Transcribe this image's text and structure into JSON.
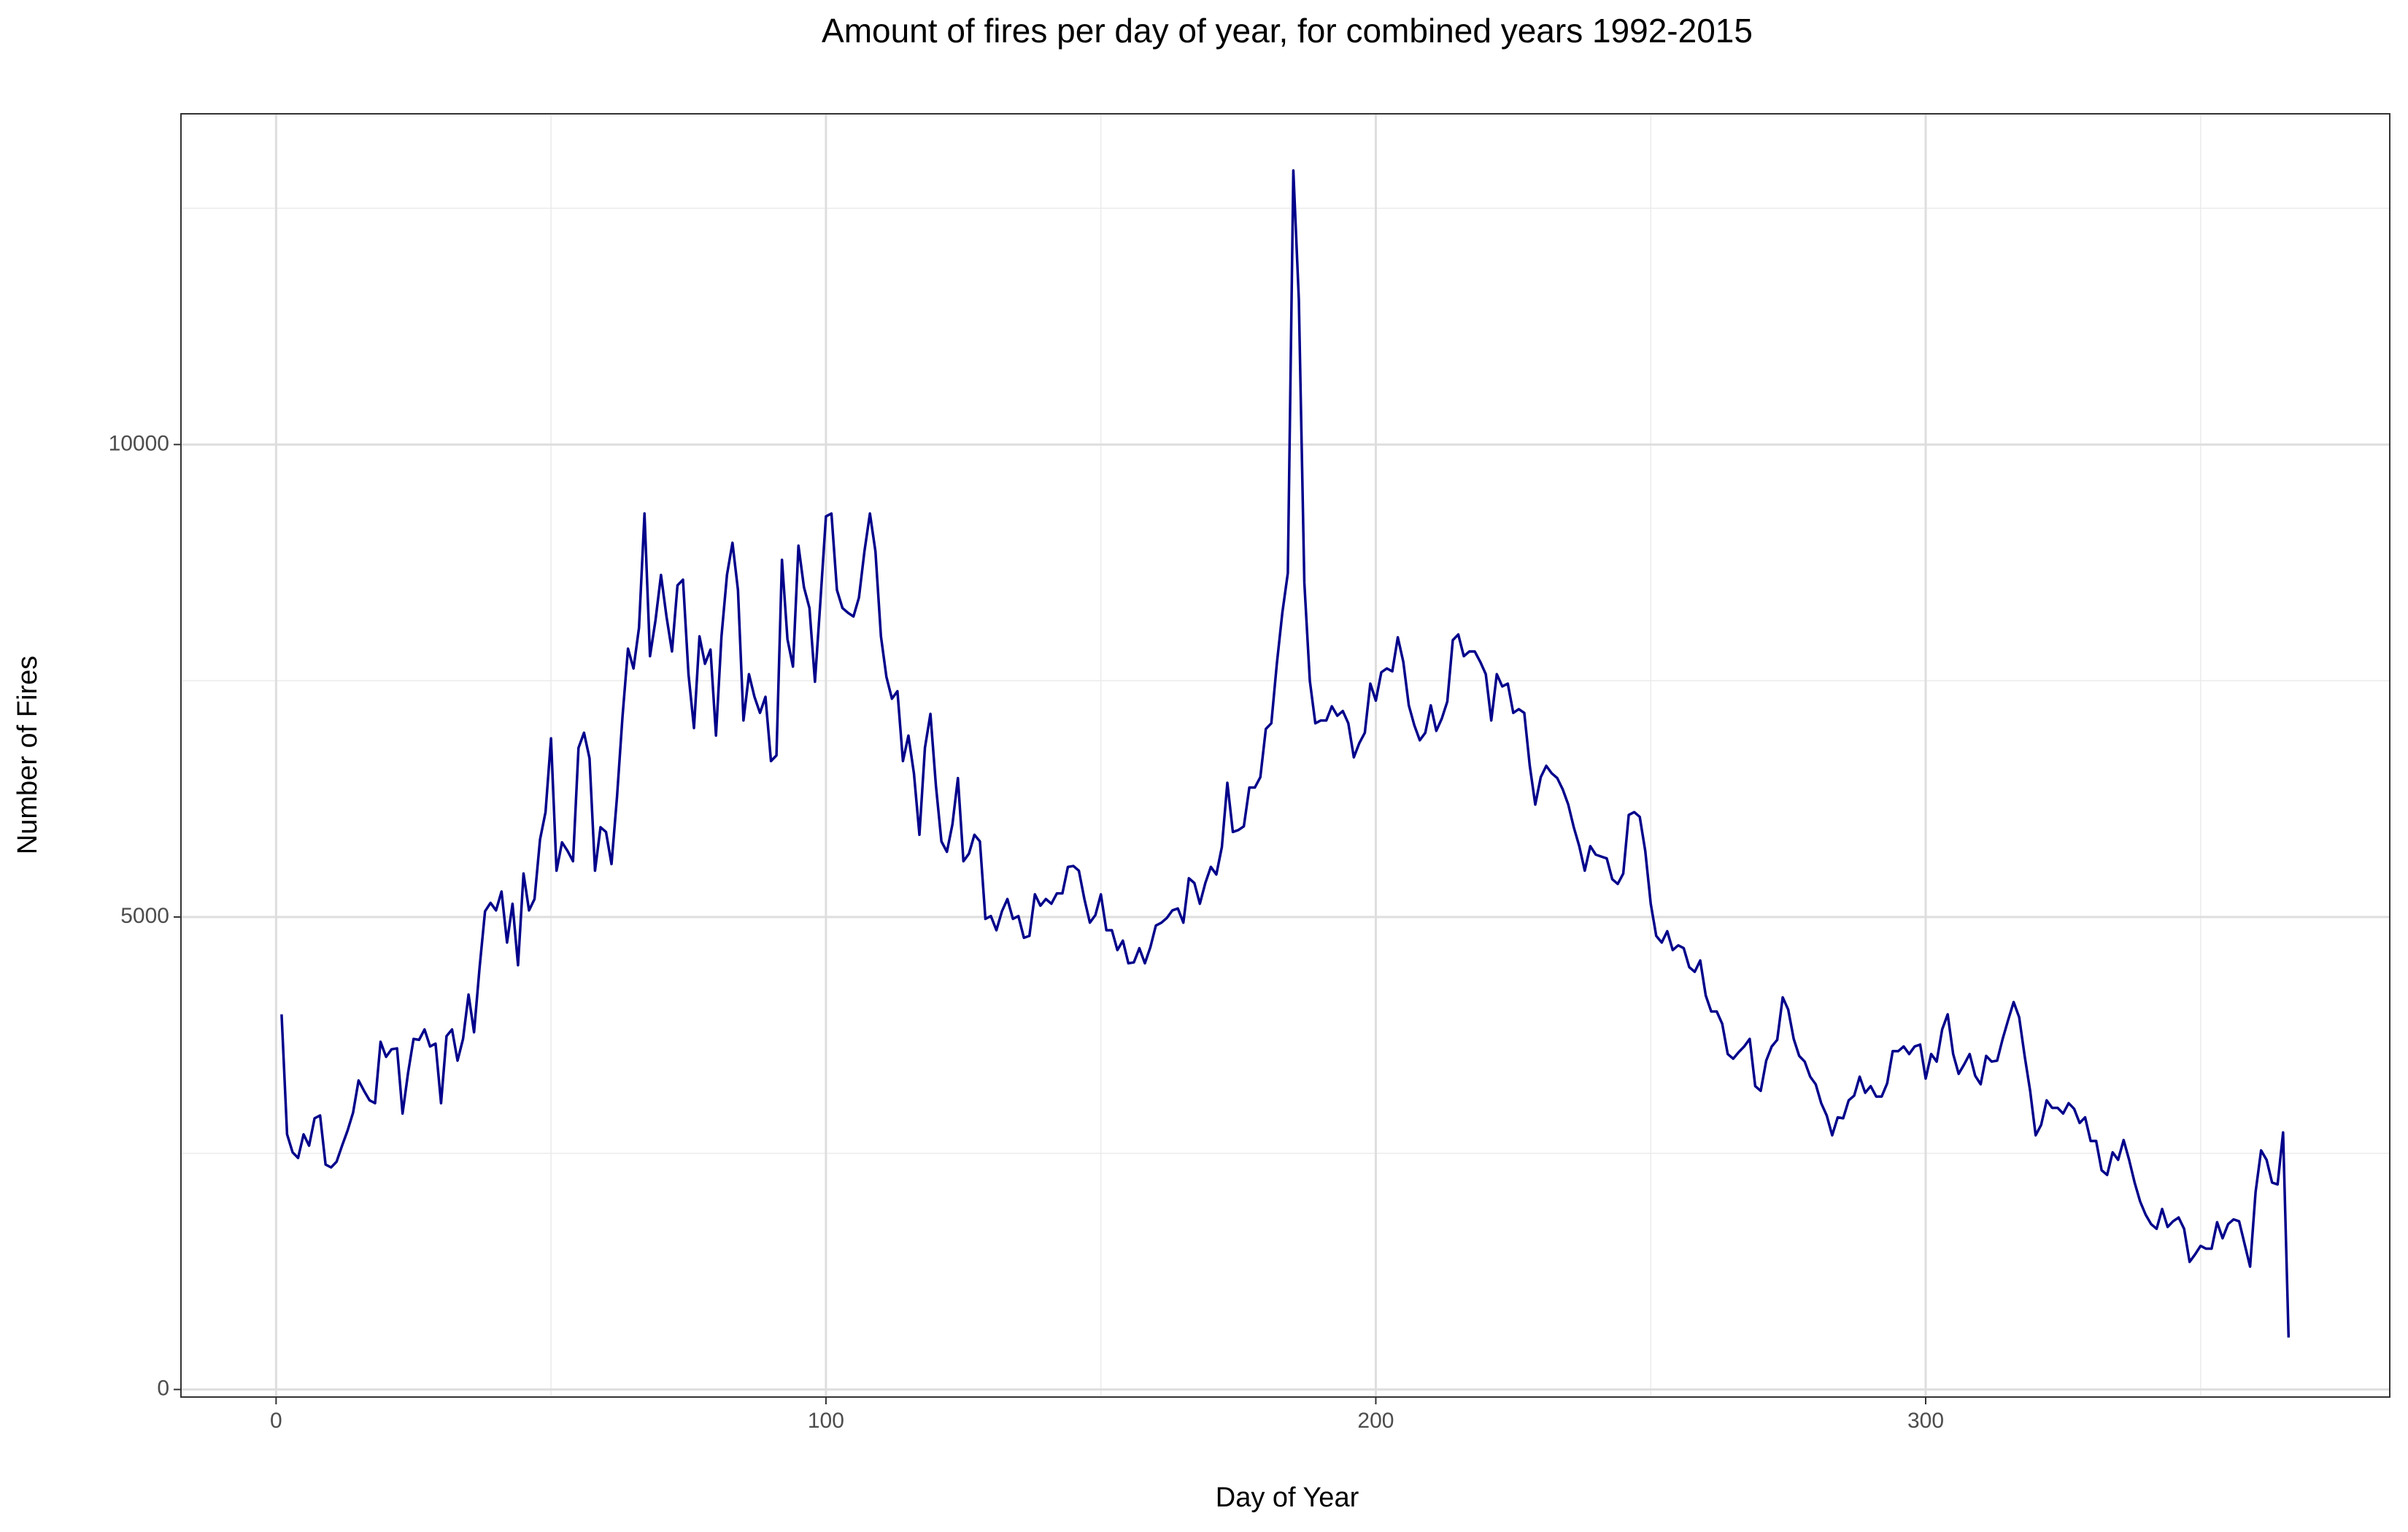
{
  "chart_data": {
    "type": "line",
    "title": "Amount of fires per day of year, for combined years 1992-2015",
    "x_label": "Day of Year",
    "y_label": "Number of Fires",
    "color": "#00008b",
    "grid": true,
    "xlim": [
      -17.3,
      384.4
    ],
    "ylim": [
      -80,
      13500
    ],
    "xticks": [
      0,
      100,
      200,
      300
    ],
    "yticks": [
      0,
      5000,
      10000
    ],
    "x_minor_ticks": [
      50,
      150,
      250,
      350
    ],
    "y_minor_ticks": [
      2500,
      7500,
      12500
    ],
    "x": [
      1,
      2,
      3,
      4,
      5,
      6,
      7,
      8,
      9,
      10,
      11,
      12,
      13,
      14,
      15,
      16,
      17,
      18,
      19,
      20,
      21,
      22,
      23,
      24,
      25,
      26,
      27,
      28,
      29,
      30,
      31,
      32,
      33,
      34,
      35,
      36,
      37,
      38,
      39,
      40,
      41,
      42,
      43,
      44,
      45,
      46,
      47,
      48,
      49,
      50,
      51,
      52,
      53,
      54,
      55,
      56,
      57,
      58,
      59,
      60,
      61,
      62,
      63,
      64,
      65,
      66,
      67,
      68,
      69,
      70,
      71,
      72,
      73,
      74,
      75,
      76,
      77,
      78,
      79,
      80,
      81,
      82,
      83,
      84,
      85,
      86,
      87,
      88,
      89,
      90,
      91,
      92,
      93,
      94,
      95,
      96,
      97,
      98,
      99,
      100,
      101,
      102,
      103,
      104,
      105,
      106,
      107,
      108,
      109,
      110,
      111,
      112,
      113,
      114,
      115,
      116,
      117,
      118,
      119,
      120,
      121,
      122,
      123,
      124,
      125,
      126,
      127,
      128,
      129,
      130,
      131,
      132,
      133,
      134,
      135,
      136,
      137,
      138,
      139,
      140,
      141,
      142,
      143,
      144,
      145,
      146,
      147,
      148,
      149,
      150,
      151,
      152,
      153,
      154,
      155,
      156,
      157,
      158,
      159,
      160,
      161,
      162,
      163,
      164,
      165,
      166,
      167,
      168,
      169,
      170,
      171,
      172,
      173,
      174,
      175,
      176,
      177,
      178,
      179,
      180,
      181,
      182,
      183,
      184,
      185,
      186,
      187,
      188,
      189,
      190,
      191,
      192,
      193,
      194,
      195,
      196,
      197,
      198,
      199,
      200,
      201,
      202,
      203,
      204,
      205,
      206,
      207,
      208,
      209,
      210,
      211,
      212,
      213,
      214,
      215,
      216,
      217,
      218,
      219,
      220,
      221,
      222,
      223,
      224,
      225,
      226,
      227,
      228,
      229,
      230,
      231,
      232,
      233,
      234,
      235,
      236,
      237,
      238,
      239,
      240,
      241,
      242,
      243,
      244,
      245,
      246,
      247,
      248,
      249,
      250,
      251,
      252,
      253,
      254,
      255,
      256,
      257,
      258,
      259,
      260,
      261,
      262,
      263,
      264,
      265,
      266,
      267,
      268,
      269,
      270,
      271,
      272,
      273,
      274,
      275,
      276,
      277,
      278,
      279,
      280,
      281,
      282,
      283,
      284,
      285,
      286,
      287,
      288,
      289,
      290,
      291,
      292,
      293,
      294,
      295,
      296,
      297,
      298,
      299,
      300,
      301,
      302,
      303,
      304,
      305,
      306,
      307,
      308,
      309,
      310,
      311,
      312,
      313,
      314,
      315,
      316,
      317,
      318,
      319,
      320,
      321,
      322,
      323,
      324,
      325,
      326,
      327,
      328,
      329,
      330,
      331,
      332,
      333,
      334,
      335,
      336,
      337,
      338,
      339,
      340,
      341,
      342,
      343,
      344,
      345,
      346,
      347,
      348,
      349,
      350,
      351,
      352,
      353,
      354,
      355,
      356,
      357,
      358,
      359,
      360,
      361,
      362,
      363,
      364,
      365,
      366
    ],
    "values": [
      3970,
      2700,
      2510,
      2450,
      2700,
      2580,
      2870,
      2900,
      2380,
      2350,
      2410,
      2580,
      2740,
      2930,
      3270,
      3160,
      3060,
      3030,
      3680,
      3520,
      3600,
      3610,
      2920,
      3350,
      3710,
      3700,
      3810,
      3630,
      3660,
      3030,
      3740,
      3810,
      3480,
      3710,
      4180,
      3780,
      4460,
      5060,
      5150,
      5070,
      5270,
      4730,
      5140,
      4490,
      5460,
      5070,
      5190,
      5820,
      6110,
      6890,
      5490,
      5790,
      5700,
      5590,
      6790,
      6950,
      6680,
      5490,
      5950,
      5900,
      5560,
      6270,
      7120,
      7840,
      7630,
      8060,
      9270,
      7760,
      8140,
      8620,
      8180,
      7810,
      8510,
      8570,
      7570,
      7000,
      7970,
      7680,
      7830,
      6920,
      7970,
      8620,
      8960,
      8460,
      7080,
      7570,
      7330,
      7160,
      7330,
      6650,
      6710,
      8780,
      7940,
      7650,
      8930,
      8490,
      8270,
      7490,
      8350,
      9240,
      9270,
      8460,
      8270,
      8220,
      8180,
      8380,
      8870,
      9270,
      8870,
      7970,
      7540,
      7310,
      7390,
      6650,
      6920,
      6520,
      5870,
      6790,
      7150,
      6390,
      5800,
      5690,
      5980,
      6470,
      5590,
      5670,
      5870,
      5800,
      4980,
      5010,
      4860,
      5060,
      5190,
      4980,
      5010,
      4780,
      4800,
      5240,
      5120,
      5190,
      5140,
      5250,
      5250,
      5530,
      5540,
      5490,
      5190,
      4940,
      5020,
      5240,
      4860,
      4860,
      4650,
      4750,
      4510,
      4520,
      4670,
      4510,
      4680,
      4910,
      4940,
      4990,
      5070,
      5090,
      4940,
      5410,
      5360,
      5140,
      5360,
      5530,
      5450,
      5740,
      6420,
      5900,
      5920,
      5960,
      6370,
      6370,
      6480,
      6990,
      7050,
      7680,
      8220,
      8640,
      12900,
      11540,
      8540,
      7500,
      7050,
      7080,
      7080,
      7230,
      7130,
      7180,
      7050,
      6690,
      6840,
      6950,
      7470,
      7290,
      7590,
      7630,
      7600,
      7960,
      7700,
      7240,
      7030,
      6870,
      6950,
      7240,
      6970,
      7100,
      7280,
      7930,
      7990,
      7760,
      7810,
      7810,
      7700,
      7570,
      7080,
      7570,
      7440,
      7470,
      7160,
      7200,
      7160,
      6600,
      6190,
      6480,
      6600,
      6520,
      6470,
      6350,
      6190,
      5950,
      5750,
      5490,
      5750,
      5660,
      5640,
      5620,
      5400,
      5350,
      5460,
      6080,
      6110,
      6060,
      5700,
      5140,
      4800,
      4730,
      4850,
      4650,
      4700,
      4670,
      4470,
      4420,
      4540,
      4170,
      4000,
      4000,
      3870,
      3550,
      3500,
      3570,
      3630,
      3710,
      3210,
      3160,
      3480,
      3630,
      3700,
      4150,
      4020,
      3710,
      3530,
      3470,
      3310,
      3230,
      3030,
      2900,
      2690,
      2880,
      2870,
      3060,
      3110,
      3310,
      3140,
      3210,
      3100,
      3100,
      3240,
      3580,
      3580,
      3630,
      3550,
      3630,
      3650,
      3290,
      3550,
      3470,
      3810,
      3970,
      3550,
      3340,
      3440,
      3550,
      3320,
      3230,
      3530,
      3470,
      3480,
      3710,
      3910,
      4100,
      3940,
      3530,
      3160,
      2690,
      2800,
      3060,
      2980,
      2980,
      2920,
      3030,
      2970,
      2820,
      2880,
      2630,
      2630,
      2320,
      2270,
      2510,
      2430,
      2640,
      2430,
      2190,
      1990,
      1850,
      1750,
      1700,
      1910,
      1720,
      1780,
      1820,
      1700,
      1350,
      1430,
      1520,
      1490,
      1490,
      1770,
      1600,
      1750,
      1800,
      1780,
      1540,
      1300,
      2090,
      2530,
      2430,
      2190,
      2170,
      2720,
      550
    ]
  }
}
